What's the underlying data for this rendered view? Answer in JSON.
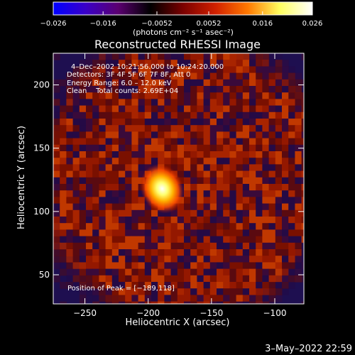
{
  "chart_data": {
    "type": "heatmap",
    "title": "Reconstructed RHESSI Image",
    "xlabel": "Heliocentric X (arcsec)",
    "ylabel": "Heliocentric Y (arcsec)",
    "xlim": [
      -275,
      -77
    ],
    "ylim": [
      27,
      225
    ],
    "x_ticks": [
      -250,
      -200,
      -150,
      -100
    ],
    "x_tick_labels": [
      "−250",
      "−200",
      "−150",
      "−100"
    ],
    "y_ticks": [
      50,
      100,
      150,
      200
    ],
    "y_tick_labels": [
      "50",
      "100",
      "150",
      "200"
    ],
    "colorbar": {
      "range": [
        -0.026,
        0.026
      ],
      "ticks": [
        -0.026,
        -0.016,
        -0.0052,
        0.0052,
        0.016,
        0.026
      ],
      "tick_labels": [
        "−0.026",
        "−0.016",
        "−0.0052",
        "0.0052",
        "0.016",
        "0.026"
      ],
      "units_label": "(photons cm⁻² s⁻¹ asec⁻²)",
      "colors": [
        "#0000ff",
        "#3a00c8",
        "#5a0070",
        "#000000",
        "#7a0000",
        "#d02000",
        "#ff7800",
        "#ffff60",
        "#ffffff"
      ]
    },
    "annotations": [
      "4–Dec–2002 10:21:56.000 to 10:24:20.000",
      "Detectors: 3F 4F 5F 6F 7F 8F, Att 0",
      "Energy Range: 6.0 – 12.0 keV",
      "Clean    Total counts: 2.69E+04"
    ],
    "peak_label": "Position of Peak = [−189,118]",
    "peak": {
      "x": -189,
      "y": 118
    },
    "source": {
      "x": -189,
      "y": 118
    },
    "background_color": "#1e0f50"
  },
  "footer": {
    "timestamp": "3–May–2022 22:59"
  }
}
